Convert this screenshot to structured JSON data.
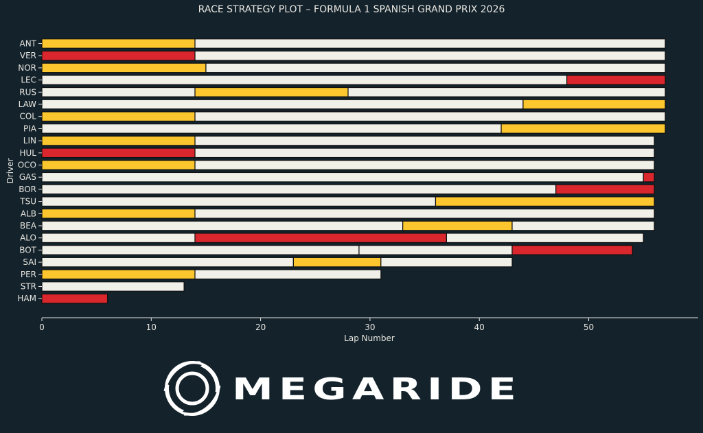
{
  "chart_data": {
    "type": "bar",
    "orientation": "horizontal-stacked",
    "title": "RACE STRATEGY PLOT – FORMULA 1 SPANISH GRAND PRIX 2026",
    "xlabel": "Lap Number",
    "ylabel": "Driver",
    "xlim": [
      0,
      60
    ],
    "xticks": [
      0,
      10,
      20,
      30,
      40,
      50
    ],
    "grid": false,
    "compound_colors": {
      "soft": "#d9272d",
      "medium": "#fcc72e",
      "hard": "#f0efe8"
    },
    "drivers": [
      {
        "code": "ANT",
        "stints": [
          {
            "compound": "medium",
            "start": 0,
            "end": 14
          },
          {
            "compound": "hard",
            "start": 14,
            "end": 57
          }
        ]
      },
      {
        "code": "VER",
        "stints": [
          {
            "compound": "soft",
            "start": 0,
            "end": 14
          },
          {
            "compound": "hard",
            "start": 14,
            "end": 57
          }
        ]
      },
      {
        "code": "NOR",
        "stints": [
          {
            "compound": "medium",
            "start": 0,
            "end": 15
          },
          {
            "compound": "hard",
            "start": 15,
            "end": 57
          }
        ]
      },
      {
        "code": "LEC",
        "stints": [
          {
            "compound": "hard",
            "start": 0,
            "end": 48
          },
          {
            "compound": "soft",
            "start": 48,
            "end": 57
          }
        ]
      },
      {
        "code": "RUS",
        "stints": [
          {
            "compound": "hard",
            "start": 0,
            "end": 14
          },
          {
            "compound": "medium",
            "start": 14,
            "end": 28
          },
          {
            "compound": "hard",
            "start": 28,
            "end": 57
          }
        ]
      },
      {
        "code": "LAW",
        "stints": [
          {
            "compound": "hard",
            "start": 0,
            "end": 44
          },
          {
            "compound": "medium",
            "start": 44,
            "end": 57
          }
        ]
      },
      {
        "code": "COL",
        "stints": [
          {
            "compound": "medium",
            "start": 0,
            "end": 14
          },
          {
            "compound": "hard",
            "start": 14,
            "end": 57
          }
        ]
      },
      {
        "code": "PIA",
        "stints": [
          {
            "compound": "hard",
            "start": 0,
            "end": 42
          },
          {
            "compound": "medium",
            "start": 42,
            "end": 57
          }
        ]
      },
      {
        "code": "LIN",
        "stints": [
          {
            "compound": "medium",
            "start": 0,
            "end": 14
          },
          {
            "compound": "hard",
            "start": 14,
            "end": 56
          }
        ]
      },
      {
        "code": "HUL",
        "stints": [
          {
            "compound": "soft",
            "start": 0,
            "end": 14
          },
          {
            "compound": "hard",
            "start": 14,
            "end": 56
          }
        ]
      },
      {
        "code": "OCO",
        "stints": [
          {
            "compound": "medium",
            "start": 0,
            "end": 14
          },
          {
            "compound": "hard",
            "start": 14,
            "end": 56
          }
        ]
      },
      {
        "code": "GAS",
        "stints": [
          {
            "compound": "hard",
            "start": 0,
            "end": 55
          },
          {
            "compound": "soft",
            "start": 55,
            "end": 56
          }
        ]
      },
      {
        "code": "BOR",
        "stints": [
          {
            "compound": "hard",
            "start": 0,
            "end": 47
          },
          {
            "compound": "soft",
            "start": 47,
            "end": 56
          }
        ]
      },
      {
        "code": "TSU",
        "stints": [
          {
            "compound": "hard",
            "start": 0,
            "end": 36
          },
          {
            "compound": "medium",
            "start": 36,
            "end": 56
          }
        ]
      },
      {
        "code": "ALB",
        "stints": [
          {
            "compound": "medium",
            "start": 0,
            "end": 14
          },
          {
            "compound": "hard",
            "start": 14,
            "end": 56
          }
        ]
      },
      {
        "code": "BEA",
        "stints": [
          {
            "compound": "hard",
            "start": 0,
            "end": 33
          },
          {
            "compound": "medium",
            "start": 33,
            "end": 43
          },
          {
            "compound": "hard",
            "start": 43,
            "end": 56
          }
        ]
      },
      {
        "code": "ALO",
        "stints": [
          {
            "compound": "hard",
            "start": 0,
            "end": 14
          },
          {
            "compound": "soft",
            "start": 14,
            "end": 37
          },
          {
            "compound": "hard",
            "start": 37,
            "end": 55
          }
        ]
      },
      {
        "code": "BOT",
        "stints": [
          {
            "compound": "hard",
            "start": 0,
            "end": 29
          },
          {
            "compound": "hard",
            "start": 29,
            "end": 43
          },
          {
            "compound": "soft",
            "start": 43,
            "end": 54
          }
        ]
      },
      {
        "code": "SAI",
        "stints": [
          {
            "compound": "hard",
            "start": 0,
            "end": 23
          },
          {
            "compound": "medium",
            "start": 23,
            "end": 31
          },
          {
            "compound": "hard",
            "start": 31,
            "end": 43
          }
        ]
      },
      {
        "code": "PER",
        "stints": [
          {
            "compound": "medium",
            "start": 0,
            "end": 14
          },
          {
            "compound": "hard",
            "start": 14,
            "end": 31
          }
        ]
      },
      {
        "code": "STR",
        "stints": [
          {
            "compound": "hard",
            "start": 0,
            "end": 13
          }
        ]
      },
      {
        "code": "HAM",
        "stints": [
          {
            "compound": "soft",
            "start": 0,
            "end": 6
          }
        ]
      }
    ]
  },
  "branding": {
    "logo_text": "MEGARIDE",
    "logo_icon": "megaride-emblem-icon",
    "logo_color": "#ffffff"
  },
  "colors": {
    "background": "#13222b",
    "text": "#e8e6e0",
    "bar_outline": "#111111"
  }
}
